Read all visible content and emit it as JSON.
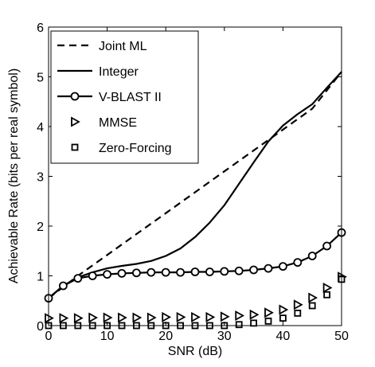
{
  "chart_data": {
    "type": "line",
    "xlabel": "SNR (dB)",
    "ylabel": "Achievable Rate (bits per real symbol)",
    "xlim": [
      0,
      50
    ],
    "ylim": [
      0,
      6
    ],
    "xticks": [
      "0",
      "10",
      "20",
      "30",
      "40",
      "50"
    ],
    "yticks": [
      "0",
      "1",
      "2",
      "3",
      "4",
      "5",
      "6"
    ],
    "grid": false,
    "legend_position": "top-left",
    "series": [
      {
        "name": "Joint ML",
        "style": "dashed",
        "marker": "none",
        "x": [
          0,
          5,
          10,
          15,
          20,
          25,
          30,
          35,
          40,
          45,
          50
        ],
        "y": [
          0.55,
          1.0,
          1.42,
          1.84,
          2.26,
          2.68,
          3.1,
          3.52,
          3.94,
          4.36,
          5.1
        ]
      },
      {
        "name": "Integer",
        "style": "solid",
        "marker": "none",
        "x": [
          0,
          2.5,
          5,
          7.5,
          10,
          12.5,
          15,
          17.5,
          20,
          22.5,
          25,
          27.5,
          30,
          32.5,
          35,
          37.5,
          40,
          42.5,
          45,
          47.5,
          50
        ],
        "y": [
          0.55,
          0.8,
          0.97,
          1.07,
          1.15,
          1.2,
          1.24,
          1.3,
          1.4,
          1.55,
          1.78,
          2.07,
          2.42,
          2.85,
          3.28,
          3.7,
          4.02,
          4.25,
          4.45,
          4.78,
          5.1
        ]
      },
      {
        "name": "V-BLAST II",
        "style": "solid",
        "marker": "circle",
        "x": [
          0,
          2.5,
          5,
          7.5,
          10,
          12.5,
          15,
          17.5,
          20,
          22.5,
          25,
          27.5,
          30,
          32.5,
          35,
          37.5,
          40,
          42.5,
          45,
          47.5,
          50
        ],
        "y": [
          0.55,
          0.8,
          0.95,
          1.0,
          1.03,
          1.05,
          1.06,
          1.07,
          1.07,
          1.07,
          1.08,
          1.08,
          1.09,
          1.1,
          1.12,
          1.15,
          1.19,
          1.27,
          1.4,
          1.6,
          1.87
        ]
      },
      {
        "name": "MMSE",
        "style": "none",
        "marker": "triangle-right",
        "x": [
          0,
          2.5,
          5,
          7.5,
          10,
          12.5,
          15,
          17.5,
          20,
          22.5,
          25,
          27.5,
          30,
          32.5,
          35,
          37.5,
          40,
          42.5,
          45,
          47.5,
          50
        ],
        "y": [
          0.15,
          0.15,
          0.15,
          0.16,
          0.16,
          0.16,
          0.16,
          0.16,
          0.17,
          0.17,
          0.17,
          0.17,
          0.18,
          0.2,
          0.22,
          0.26,
          0.32,
          0.42,
          0.56,
          0.76,
          0.98
        ]
      },
      {
        "name": "Zero-Forcing",
        "style": "none",
        "marker": "square",
        "x": [
          0,
          2.5,
          5,
          7.5,
          10,
          12.5,
          15,
          17.5,
          20,
          22.5,
          25,
          27.5,
          30,
          32.5,
          35,
          37.5,
          40,
          42.5,
          45,
          47.5,
          50
        ],
        "y": [
          0.0,
          0.0,
          0.0,
          0.0,
          0.0,
          0.0,
          0.0,
          0.0,
          0.0,
          0.0,
          0.0,
          0.0,
          0.0,
          0.02,
          0.05,
          0.09,
          0.15,
          0.25,
          0.4,
          0.62,
          0.93
        ]
      }
    ]
  }
}
